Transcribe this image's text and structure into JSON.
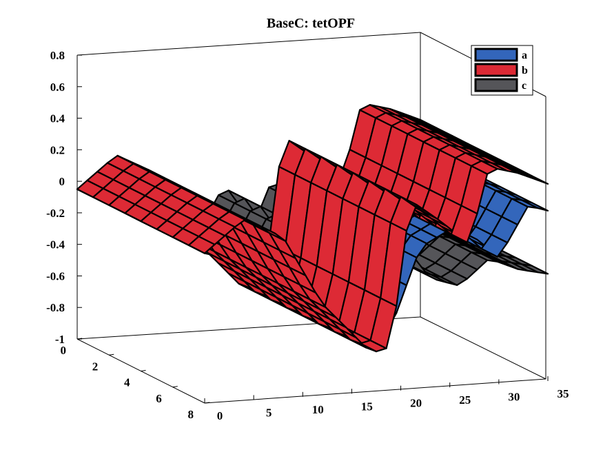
{
  "chart_data": {
    "type": "surface",
    "title": "BaseC: tetOPF",
    "zlim": [
      -1,
      0.8
    ],
    "z_ticks": [
      "-1",
      "-0.8",
      "-0.6",
      "-0.4",
      "-0.2",
      "0",
      "0.2",
      "0.4",
      "0.6",
      "0.8"
    ],
    "x_ticks": [
      "0",
      "5",
      "10",
      "15",
      "20",
      "25",
      "30",
      "35"
    ],
    "y_ticks": [
      "0",
      "2",
      "4",
      "6",
      "8"
    ],
    "xlim": [
      0,
      35
    ],
    "ylim": [
      0,
      8
    ],
    "grid": false,
    "legend_position": "top-right",
    "series": [
      {
        "name": "a",
        "color": "#3366bb",
        "points": [
          [
            0,
            -0.05
          ],
          [
            4,
            -0.1
          ],
          [
            6,
            -0.14
          ],
          [
            8,
            -0.26
          ],
          [
            12,
            -0.4
          ],
          [
            14,
            -0.5
          ],
          [
            17,
            -0.68
          ],
          [
            19,
            -0.6
          ],
          [
            22,
            -0.1
          ],
          [
            25,
            0.0
          ],
          [
            28,
            -0.08
          ],
          [
            30,
            -0.2
          ],
          [
            33,
            0.12
          ],
          [
            35,
            0.08
          ]
        ]
      },
      {
        "name": "b",
        "color": "#dd2a35",
        "points": [
          [
            0,
            -0.05
          ],
          [
            4,
            0.15
          ],
          [
            8,
            0.02
          ],
          [
            10,
            -0.2
          ],
          [
            12,
            -0.42
          ],
          [
            14,
            -0.55
          ],
          [
            17,
            -0.75
          ],
          [
            19,
            -0.72
          ],
          [
            21,
            0.2
          ],
          [
            24,
            0.06
          ],
          [
            27,
            -0.1
          ],
          [
            29,
            0.38
          ],
          [
            32,
            0.33
          ],
          [
            35,
            0.25
          ]
        ]
      },
      {
        "name": "c",
        "color": "#555559",
        "points": [
          [
            0,
            -0.05
          ],
          [
            6,
            -0.16
          ],
          [
            10,
            -0.28
          ],
          [
            13,
            -0.3
          ],
          [
            15,
            -0.08
          ],
          [
            18,
            -0.35
          ],
          [
            20,
            -0.05
          ],
          [
            23,
            -0.3
          ],
          [
            26,
            -0.36
          ],
          [
            29,
            -0.2
          ],
          [
            32,
            -0.28
          ],
          [
            35,
            -0.32
          ]
        ]
      }
    ]
  }
}
